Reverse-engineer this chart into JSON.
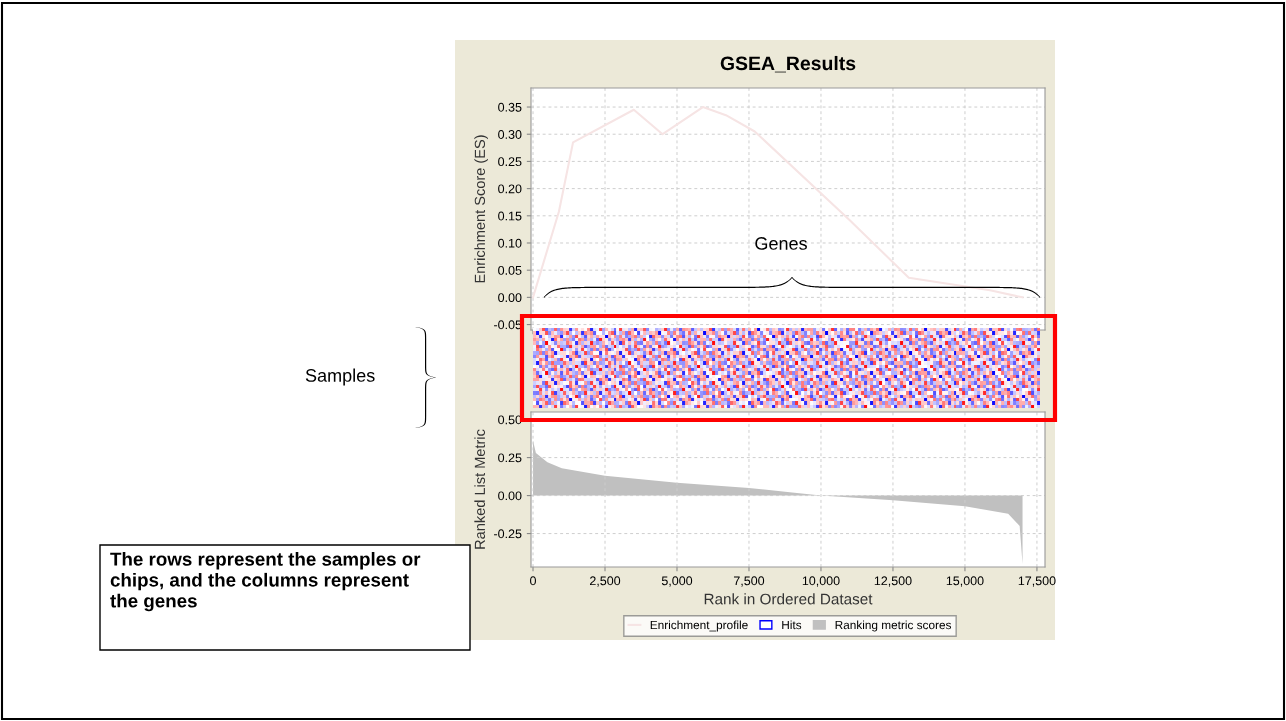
{
  "chart_data": [
    {
      "type": "line",
      "title": "GSEA_Results",
      "ylabel": "Enrichment Score (ES)",
      "annotations": [
        "Genes",
        "Samples",
        "The rows represent the samples or\nchips, and the columns represent\nthe genes"
      ],
      "series": [
        {
          "name": "Enrichment_profile",
          "color": "#f6e4e4",
          "x": [
            0,
            900,
            1390,
            3500,
            4500,
            5900,
            6700,
            7700,
            11000,
            13050,
            15870,
            17000
          ],
          "values": [
            0.0,
            0.158,
            0.285,
            0.345,
            0.3,
            0.35,
            0.335,
            0.305,
            0.142,
            0.036,
            0.013,
            0.0
          ]
        }
      ],
      "xlim": [
        -70,
        17780
      ],
      "ylim": [
        -0.06,
        0.385
      ],
      "yticks": [
        {
          "value": -0.05,
          "label": "-0.05"
        },
        {
          "value": 0,
          "label": "0.00"
        },
        {
          "value": 0.05,
          "label": "0.05"
        },
        {
          "value": 0.1,
          "label": "0.10"
        },
        {
          "value": 0.15,
          "label": "0.15"
        },
        {
          "value": 0.2,
          "label": "0.20"
        },
        {
          "value": 0.25,
          "label": "0.25"
        },
        {
          "value": 0.3,
          "label": "0.30"
        },
        {
          "value": 0.35,
          "label": "0.35"
        }
      ],
      "xticks": [
        0,
        2500,
        5000,
        7500,
        10000,
        12500,
        15000,
        17500
      ],
      "tick_labels": "y",
      "grid": true
    },
    {
      "type": "area",
      "xlabel": "Rank in Ordered Dataset",
      "ylabel": "Ranked List Metric",
      "series": [
        {
          "name": "Hits",
          "type": "bar",
          "color": "#0000ff"
        },
        {
          "name": "Ranking metric scores",
          "color": "#c0c0c0",
          "x": [
            0,
            100,
            500,
            1000,
            2500,
            5000,
            7500,
            9000,
            10000,
            12500,
            15000,
            16500,
            16900,
            17000
          ],
          "values": [
            0.36,
            0.28,
            0.22,
            0.18,
            0.13,
            0.085,
            0.05,
            0.02,
            0.0,
            -0.03,
            -0.07,
            -0.12,
            -0.2,
            -0.45
          ]
        }
      ],
      "xlim": [
        -70,
        17780
      ],
      "ylim": [
        -0.47,
        0.55
      ],
      "xticks": [
        {
          "value": 0,
          "label": "0"
        },
        {
          "value": 2500,
          "label": "2,500"
        },
        {
          "value": 5000,
          "label": "5,000"
        },
        {
          "value": 7500,
          "label": "7,500"
        },
        {
          "value": 10000,
          "label": "10,000"
        },
        {
          "value": 12500,
          "label": "12,500"
        },
        {
          "value": 15000,
          "label": "15,000"
        },
        {
          "value": 17500,
          "label": "17,500"
        }
      ],
      "yticks": [
        {
          "value": -0.25,
          "label": "-0.25"
        },
        {
          "value": 0,
          "label": "0.00"
        },
        {
          "value": 0.25,
          "label": "0.25"
        },
        {
          "value": 0.5,
          "label": "0.50"
        }
      ],
      "grid": true,
      "legend": "bottom"
    }
  ]
}
